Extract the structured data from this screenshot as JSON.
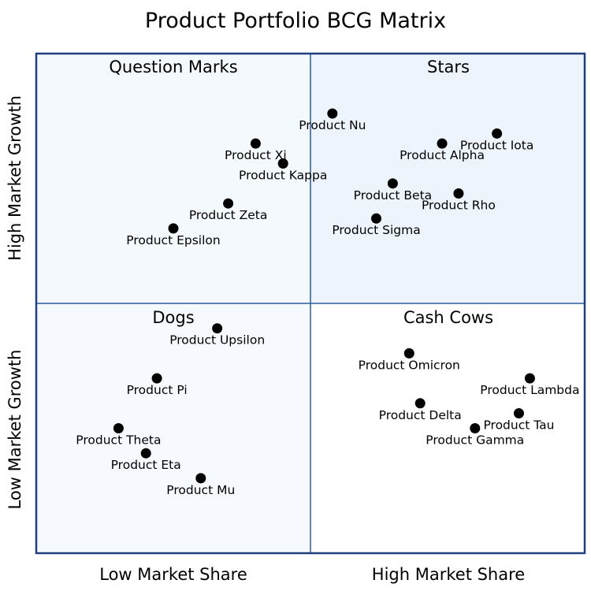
{
  "chart_data": {
    "type": "scatter",
    "title": "Product Portfolio BCG Matrix",
    "xlabel_low": "Low Market Share",
    "xlabel_high": "High Market Share",
    "ylabel_low": "Low Market Growth",
    "ylabel_high": "High Market Growth",
    "xlim": [
      0,
      10
    ],
    "ylim": [
      0,
      10
    ],
    "grid": false,
    "quadrants": {
      "top_left": "Question Marks",
      "top_right": "Stars",
      "bottom_left": "Dogs",
      "bottom_right": "Cash Cows"
    },
    "colors": {
      "frame": "#1f3f7f",
      "divider": "#2c5aa0",
      "top_left_fill": "#f4f9fe",
      "top_right_fill": "#edf4fc",
      "bottom_left_fill": "#f6fafe",
      "bottom_right_fill": "#ffffff",
      "marker": "#000000"
    },
    "points": [
      {
        "name": "Product Nu",
        "x": 5.4,
        "y": 8.8
      },
      {
        "name": "Product Iota",
        "x": 8.4,
        "y": 8.4
      },
      {
        "name": "Product Alpha",
        "x": 7.4,
        "y": 8.2
      },
      {
        "name": "Product Xi",
        "x": 4.0,
        "y": 8.2
      },
      {
        "name": "Product Kappa",
        "x": 4.5,
        "y": 7.8
      },
      {
        "name": "Product Beta",
        "x": 6.5,
        "y": 7.4
      },
      {
        "name": "Product Rho",
        "x": 7.7,
        "y": 7.2
      },
      {
        "name": "Product Zeta",
        "x": 3.5,
        "y": 7.0
      },
      {
        "name": "Product Sigma",
        "x": 6.2,
        "y": 6.7
      },
      {
        "name": "Product Epsilon",
        "x": 2.5,
        "y": 6.5
      },
      {
        "name": "Product Upsilon",
        "x": 3.3,
        "y": 4.5
      },
      {
        "name": "Product Omicron",
        "x": 6.8,
        "y": 4.0
      },
      {
        "name": "Product Pi",
        "x": 2.2,
        "y": 3.5
      },
      {
        "name": "Product Lambda",
        "x": 9.0,
        "y": 3.5
      },
      {
        "name": "Product Delta",
        "x": 7.0,
        "y": 3.0
      },
      {
        "name": "Product Tau",
        "x": 8.8,
        "y": 2.8
      },
      {
        "name": "Product Gamma",
        "x": 8.0,
        "y": 2.5
      },
      {
        "name": "Product Theta",
        "x": 1.5,
        "y": 2.5
      },
      {
        "name": "Product Eta",
        "x": 2.0,
        "y": 2.0
      },
      {
        "name": "Product Mu",
        "x": 3.0,
        "y": 1.5
      }
    ]
  }
}
